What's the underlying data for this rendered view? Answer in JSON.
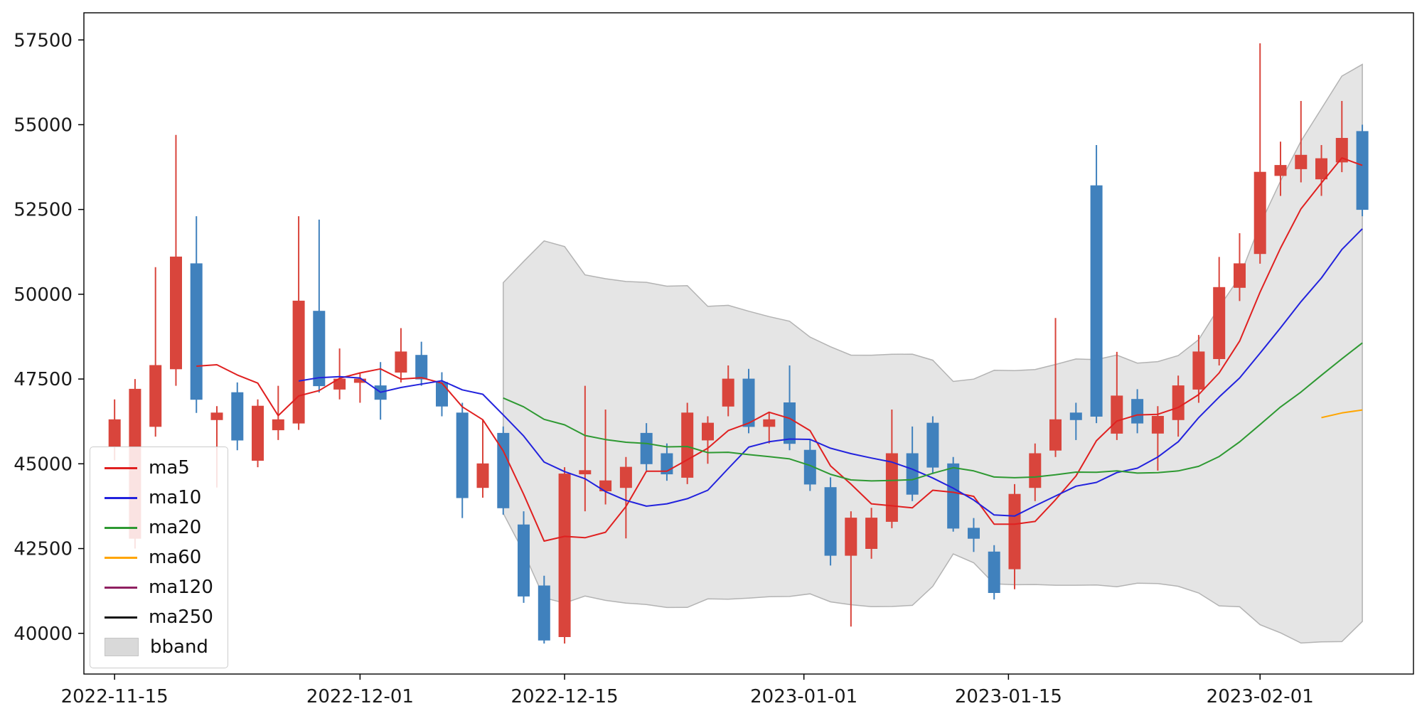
{
  "figure": {
    "background": "#ffffff"
  },
  "chart_data": {
    "type": "candlestick",
    "title": "",
    "xlabel": "",
    "ylabel": "",
    "grid": false,
    "legend_position": "lower-left",
    "colors": {
      "up": "#d9453c",
      "down": "#4081bd",
      "axis": "#000000",
      "tick_label": "#1a1a1a",
      "bband_fill": "#d3d3d3",
      "bband_edge": "#b3b3b3"
    },
    "indicators": {
      "ma_windows": [
        5,
        10,
        20,
        60,
        120,
        250
      ],
      "bband": {
        "window": 20,
        "k": 2
      }
    },
    "legend": {
      "entries": [
        {
          "label": "ma5",
          "color": "#e02020",
          "swatch": "line"
        },
        {
          "label": "ma10",
          "color": "#2222dd",
          "swatch": "line"
        },
        {
          "label": "ma20",
          "color": "#2e9932",
          "swatch": "line"
        },
        {
          "label": "ma60",
          "color": "#ffa500",
          "swatch": "line"
        },
        {
          "label": "ma120",
          "color": "#8f2061",
          "swatch": "line"
        },
        {
          "label": "ma250",
          "color": "#111111",
          "swatch": "line"
        },
        {
          "label": "bband",
          "color": "#d3d3d3",
          "swatch": "patch"
        }
      ]
    },
    "axes": {
      "y": {
        "ticks": [
          40000,
          42500,
          45000,
          47500,
          50000,
          52500,
          55000,
          57500
        ],
        "lim": [
          38800,
          58300
        ]
      },
      "x": {
        "lim": [
          -1.5,
          63.5
        ],
        "ticks": [
          {
            "label": "2022-11-15",
            "i": 0
          },
          {
            "label": "2022-12-01",
            "i": 12
          },
          {
            "label": "2022-12-15",
            "i": 22
          },
          {
            "label": "2023-01-01",
            "i": 33.7
          },
          {
            "label": "2023-01-15",
            "i": 43.7
          },
          {
            "label": "2023-02-01",
            "i": 56
          }
        ]
      }
    },
    "candle_columns": [
      "date",
      "open",
      "high",
      "low",
      "close"
    ],
    "candles": [
      [
        "2022-11-15",
        45500,
        46900,
        45100,
        46300
      ],
      [
        "2022-11-16",
        42800,
        47500,
        42500,
        47200
      ],
      [
        "2022-11-17",
        46100,
        50800,
        45800,
        47900
      ],
      [
        "2022-11-18",
        47800,
        54700,
        47300,
        51100
      ],
      [
        "2022-11-21",
        50900,
        52300,
        46500,
        46900
      ],
      [
        "2022-11-22",
        46300,
        46700,
        44300,
        46500
      ],
      [
        "2022-11-23",
        47100,
        47400,
        45400,
        45700
      ],
      [
        "2022-11-24",
        45100,
        46900,
        44900,
        46700
      ],
      [
        "2022-11-25",
        46000,
        47300,
        45700,
        46300
      ],
      [
        "2022-11-28",
        46200,
        52300,
        46000,
        49800
      ],
      [
        "2022-11-29",
        49500,
        52200,
        47100,
        47300
      ],
      [
        "2022-11-30",
        47200,
        48400,
        46900,
        47500
      ],
      [
        "2022-12-01",
        47400,
        47700,
        46800,
        47500
      ],
      [
        "2022-12-02",
        47300,
        48000,
        46300,
        46900
      ],
      [
        "2022-12-05",
        47700,
        49000,
        47400,
        48300
      ],
      [
        "2022-12-06",
        48200,
        48600,
        47300,
        47500
      ],
      [
        "2022-12-07",
        47400,
        47700,
        46400,
        46700
      ],
      [
        "2022-12-08",
        46500,
        46800,
        43400,
        44000
      ],
      [
        "2022-12-09",
        44300,
        46300,
        44000,
        45000
      ],
      [
        "2022-12-12",
        45900,
        46100,
        43500,
        43700
      ],
      [
        "2022-12-13",
        43200,
        43600,
        40900,
        41100
      ],
      [
        "2022-12-14",
        41400,
        41700,
        39700,
        39800
      ],
      [
        "2022-12-15",
        39900,
        44900,
        39700,
        44700
      ],
      [
        "2022-12-16",
        44700,
        47300,
        43600,
        44800
      ],
      [
        "2022-12-19",
        44200,
        46600,
        43800,
        44500
      ],
      [
        "2022-12-20",
        44300,
        45200,
        42800,
        44900
      ],
      [
        "2022-12-21",
        45900,
        46200,
        44800,
        45000
      ],
      [
        "2022-12-22",
        45300,
        45600,
        44500,
        44700
      ],
      [
        "2022-12-23",
        44600,
        46800,
        44400,
        46500
      ],
      [
        "2022-12-26",
        45700,
        46400,
        45000,
        46200
      ],
      [
        "2022-12-27",
        46700,
        47900,
        46400,
        47500
      ],
      [
        "2022-12-28",
        47500,
        47800,
        45900,
        46100
      ],
      [
        "2022-12-29",
        46100,
        46500,
        45600,
        46300
      ],
      [
        "2022-12-30",
        46800,
        47900,
        45400,
        45600
      ],
      [
        "2023-01-02",
        45400,
        45700,
        44200,
        44400
      ],
      [
        "2023-01-03",
        44300,
        44600,
        42000,
        42300
      ],
      [
        "2023-01-04",
        42300,
        43600,
        40200,
        43400
      ],
      [
        "2023-01-05",
        42500,
        43700,
        42200,
        43400
      ],
      [
        "2023-01-06",
        43300,
        46600,
        43100,
        45300
      ],
      [
        "2023-01-09",
        45300,
        46100,
        43900,
        44100
      ],
      [
        "2023-01-10",
        46200,
        46400,
        44700,
        44900
      ],
      [
        "2023-01-11",
        45000,
        45200,
        43000,
        43100
      ],
      [
        "2023-01-12",
        43100,
        43400,
        42400,
        42800
      ],
      [
        "2023-01-13",
        42400,
        42600,
        41000,
        41200
      ],
      [
        "2023-01-16",
        41900,
        44400,
        41300,
        44100
      ],
      [
        "2023-01-17",
        44300,
        45600,
        43900,
        45300
      ],
      [
        "2023-01-18",
        45400,
        49300,
        45200,
        46300
      ],
      [
        "2023-01-19",
        46500,
        46800,
        45700,
        46300
      ],
      [
        "2023-01-20",
        53200,
        54400,
        46200,
        46400
      ],
      [
        "2023-01-23",
        45900,
        48300,
        45700,
        47000
      ],
      [
        "2023-01-24",
        46900,
        47200,
        45900,
        46200
      ],
      [
        "2023-01-25",
        45900,
        46700,
        44800,
        46400
      ],
      [
        "2023-01-26",
        46300,
        47600,
        45800,
        47300
      ],
      [
        "2023-01-27",
        47200,
        48800,
        46800,
        48300
      ],
      [
        "2023-01-30",
        48100,
        51100,
        47900,
        50200
      ],
      [
        "2023-01-31",
        50200,
        51800,
        49800,
        50900
      ],
      [
        "2023-02-01",
        51200,
        57400,
        50900,
        53600
      ],
      [
        "2023-02-02",
        53500,
        54500,
        52900,
        53800
      ],
      [
        "2023-02-03",
        53700,
        55700,
        53300,
        54100
      ],
      [
        "2023-02-06",
        53400,
        54400,
        52900,
        54000
      ],
      [
        "2023-02-07",
        53900,
        55700,
        53600,
        54600
      ],
      [
        "2023-02-08",
        54800,
        55000,
        52300,
        52500
      ]
    ]
  }
}
